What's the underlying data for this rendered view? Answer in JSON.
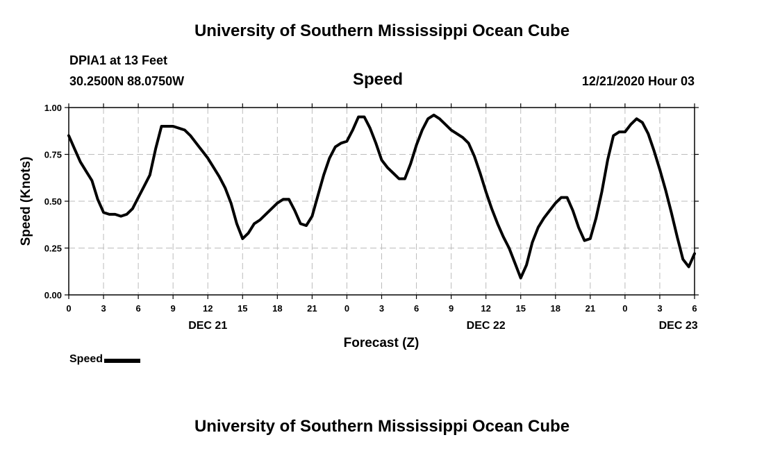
{
  "header": {
    "title_top": "University of Southern Mississippi Ocean Cube",
    "station": "DPIA1 at 13 Feet",
    "coords": "30.2500N 88.0750W",
    "subtitle": "Speed",
    "timestamp": "12/21/2020 Hour 03"
  },
  "footer": {
    "title_bottom": "University of Southern Mississippi Ocean Cube"
  },
  "legend": {
    "label": "Speed",
    "color": "#000000"
  },
  "chart_data": {
    "type": "line",
    "title": "Speed",
    "xlabel": "Forecast (Z)",
    "ylabel": "Speed (Knots)",
    "ylim": [
      0,
      1
    ],
    "xlim": [
      0,
      54
    ],
    "x_unit": "hours from 00Z DEC 21",
    "grid": true,
    "yticks": [
      {
        "value": 0.0,
        "label": "0.00"
      },
      {
        "value": 0.25,
        "label": "0.25"
      },
      {
        "value": 0.5,
        "label": "0.50"
      },
      {
        "value": 0.75,
        "label": "0.75"
      },
      {
        "value": 1.0,
        "label": "1.00"
      }
    ],
    "xticks": [
      {
        "value": 0,
        "label": "0"
      },
      {
        "value": 3,
        "label": "3"
      },
      {
        "value": 6,
        "label": "6"
      },
      {
        "value": 9,
        "label": "9"
      },
      {
        "value": 12,
        "label": "12"
      },
      {
        "value": 15,
        "label": "15"
      },
      {
        "value": 18,
        "label": "18"
      },
      {
        "value": 21,
        "label": "21"
      },
      {
        "value": 24,
        "label": "0"
      },
      {
        "value": 27,
        "label": "3"
      },
      {
        "value": 30,
        "label": "6"
      },
      {
        "value": 33,
        "label": "9"
      },
      {
        "value": 36,
        "label": "12"
      },
      {
        "value": 39,
        "label": "15"
      },
      {
        "value": 42,
        "label": "18"
      },
      {
        "value": 45,
        "label": "21"
      },
      {
        "value": 48,
        "label": "0"
      },
      {
        "value": 51,
        "label": "3"
      },
      {
        "value": 54,
        "label": "6"
      }
    ],
    "date_labels": [
      {
        "value": 12,
        "label": "DEC 21"
      },
      {
        "value": 36,
        "label": "DEC 22"
      },
      {
        "value": 52.6,
        "label": "DEC 23"
      }
    ],
    "series": [
      {
        "name": "Speed",
        "color": "#000000",
        "x": [
          0,
          0.5,
          1,
          1.5,
          2,
          2.5,
          3,
          3.5,
          4,
          4.5,
          5,
          5.5,
          6,
          6.5,
          7,
          7.5,
          8,
          8.5,
          9,
          9.5,
          10,
          10.5,
          11,
          11.5,
          12,
          12.5,
          13,
          13.5,
          14,
          14.5,
          15,
          15.5,
          16,
          16.5,
          17,
          17.5,
          18,
          18.5,
          19,
          19.5,
          20,
          20.5,
          21,
          21.5,
          22,
          22.5,
          23,
          23.5,
          24,
          24.5,
          25,
          25.5,
          26,
          26.5,
          27,
          27.5,
          28,
          28.5,
          29,
          29.5,
          30,
          30.5,
          31,
          31.5,
          32,
          32.5,
          33,
          33.5,
          34,
          34.5,
          35,
          35.5,
          36,
          36.5,
          37,
          37.5,
          38,
          38.5,
          39,
          39.5,
          40,
          40.5,
          41,
          41.5,
          42,
          42.5,
          43,
          43.5,
          44,
          44.5,
          45,
          45.5,
          46,
          46.5,
          47,
          47.5,
          48,
          48.5,
          49,
          49.5,
          50,
          50.5,
          51,
          51.5,
          52,
          52.5,
          53,
          53.5,
          54
        ],
        "values": [
          0.85,
          0.78,
          0.71,
          0.66,
          0.61,
          0.51,
          0.44,
          0.43,
          0.43,
          0.42,
          0.43,
          0.46,
          0.52,
          0.58,
          0.64,
          0.78,
          0.9,
          0.9,
          0.9,
          0.89,
          0.88,
          0.85,
          0.81,
          0.77,
          0.73,
          0.68,
          0.63,
          0.57,
          0.49,
          0.38,
          0.3,
          0.33,
          0.38,
          0.4,
          0.43,
          0.46,
          0.49,
          0.51,
          0.51,
          0.45,
          0.38,
          0.37,
          0.42,
          0.53,
          0.64,
          0.73,
          0.79,
          0.81,
          0.82,
          0.88,
          0.95,
          0.95,
          0.89,
          0.81,
          0.72,
          0.68,
          0.65,
          0.62,
          0.62,
          0.7,
          0.8,
          0.88,
          0.94,
          0.96,
          0.94,
          0.91,
          0.88,
          0.86,
          0.84,
          0.81,
          0.74,
          0.65,
          0.55,
          0.46,
          0.38,
          0.31,
          0.25,
          0.17,
          0.09,
          0.16,
          0.28,
          0.36,
          0.41,
          0.45,
          0.49,
          0.52,
          0.52,
          0.45,
          0.36,
          0.29,
          0.3,
          0.41,
          0.55,
          0.72,
          0.85,
          0.87,
          0.87,
          0.91,
          0.94,
          0.92,
          0.86,
          0.77,
          0.67,
          0.56,
          0.44,
          0.31,
          0.19,
          0.15,
          0.22
        ]
      }
    ]
  }
}
